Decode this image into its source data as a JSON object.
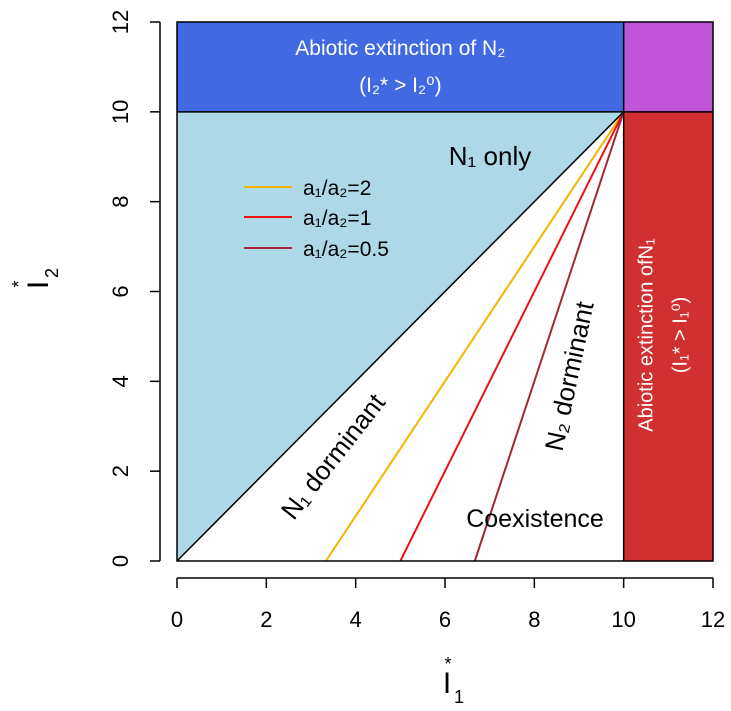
{
  "chart_data": {
    "type": "line",
    "xlabel": "I*1",
    "ylabel": "I*2",
    "xlim": [
      0,
      12
    ],
    "ylim": [
      0,
      12
    ],
    "xticks": [
      0,
      2,
      4,
      6,
      8,
      10,
      12
    ],
    "yticks": [
      0,
      2,
      4,
      6,
      8,
      10,
      12
    ],
    "grid": false,
    "legend_position": "upper-left inside plot",
    "colors": {
      "n1_only_region": "#add8e6",
      "abiotic_n2_region": "#4169e1",
      "abiotic_n1_region": "#d03030",
      "both_extinct_region": "#c055d8",
      "axes": "#000000"
    },
    "series": [
      {
        "name": "a1/a2=2",
        "legend_label": "a₁/a₂=2",
        "color": "#f5b400",
        "x": [
          3.333,
          10
        ],
        "y": [
          0,
          10
        ]
      },
      {
        "name": "a1/a2=1",
        "legend_label": "a₁/a₂=1",
        "color": "#ee1111",
        "x": [
          5,
          10
        ],
        "y": [
          0,
          10
        ]
      },
      {
        "name": "a1/a2=0.5",
        "legend_label": "a₁/a₂=0.5",
        "color": "#a0283a",
        "x": [
          6.667,
          10
        ],
        "y": [
          0,
          10
        ]
      }
    ],
    "boundary_line": {
      "x": [
        0,
        10
      ],
      "y": [
        0,
        10
      ],
      "color": "#000000"
    },
    "regions": [
      {
        "name": "abiotic_n2",
        "x": [
          0,
          10
        ],
        "y": [
          10,
          12
        ],
        "label": "Abiotic extinction of N₂",
        "sublabel": "(I₂* > I₂⁰)"
      },
      {
        "name": "abiotic_n1",
        "x": [
          10,
          12
        ],
        "y": [
          0,
          10
        ],
        "label": "Abiotic extinction ofN₁",
        "sublabel": "(I₁* > I₁⁰)"
      },
      {
        "name": "both_extinct",
        "x": [
          10,
          12
        ],
        "y": [
          10,
          12
        ]
      },
      {
        "name": "n1_only",
        "label": "N₁ only"
      }
    ],
    "annotations": {
      "n1_dominant": "N₁ dorminant",
      "n2_dominant": "N₂ dorminant",
      "coexistence": "Coexistence"
    }
  }
}
